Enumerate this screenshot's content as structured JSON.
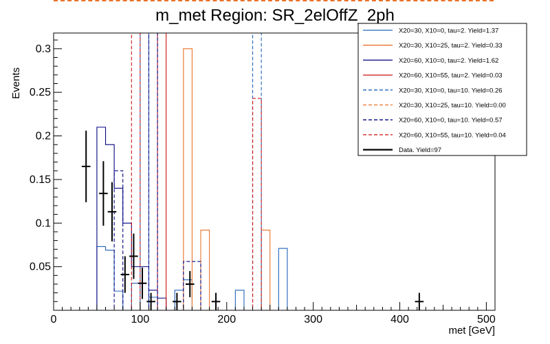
{
  "chart_data": {
    "type": "histogram",
    "title": "m_met Region: SR_2elOffZ_2ph",
    "xlabel": "met [GeV]",
    "ylabel": "Events",
    "xlim": [
      0,
      510
    ],
    "ylim": [
      0,
      0.318
    ],
    "bin_width": 10,
    "xticks": [
      0,
      100,
      200,
      300,
      400,
      500
    ],
    "yticks": [
      0.05,
      0.1,
      0.15,
      0.2,
      0.25,
      0.3
    ],
    "ytick_labels": [
      "0.05",
      "0.1",
      "0.15",
      "0.2",
      "0.25",
      "0.3"
    ],
    "series": [
      {
        "name": "X20=30, X10=0, tau=2. Yield=1.37",
        "color": "#1f63b8",
        "dash": false,
        "bins": [
          [
            40,
            0
          ],
          [
            50,
            0.073
          ],
          [
            60,
            0.069
          ],
          [
            70,
            0.022
          ],
          [
            80,
            0
          ],
          [
            90,
            0.031
          ],
          [
            100,
            0
          ],
          [
            110,
            0.015
          ],
          [
            120,
            0
          ],
          [
            130,
            0
          ],
          [
            140,
            0.023
          ],
          [
            150,
            0.035
          ],
          [
            160,
            0
          ],
          [
            170,
            0
          ],
          [
            180,
            0
          ],
          [
            190,
            0
          ],
          [
            200,
            0
          ],
          [
            210,
            0.023
          ],
          [
            220,
            0
          ],
          [
            230,
            0
          ],
          [
            240,
            0
          ],
          [
            250,
            0
          ],
          [
            260,
            0.071
          ],
          [
            270,
            0
          ]
        ]
      },
      {
        "name": "X20=30, X10=25, tau=2. Yield=0.33",
        "color": "#e8722a",
        "dash": false,
        "bins": [
          [
            140,
            0
          ],
          [
            150,
            0.3
          ],
          [
            160,
            0
          ],
          [
            170,
            0.092
          ],
          [
            180,
            0
          ],
          [
            240,
            0.092
          ],
          [
            250,
            0
          ]
        ]
      },
      {
        "name": "X20=60, X10=0, tau=2. Yield=1.62",
        "color": "#000080",
        "dash": false,
        "bins": [
          [
            40,
            0
          ],
          [
            50,
            0.21
          ],
          [
            60,
            0.19
          ],
          [
            70,
            0.14
          ],
          [
            80,
            0.1
          ],
          [
            90,
            0.05
          ],
          [
            100,
            0.05
          ],
          [
            110,
            0.023
          ],
          [
            120,
            0.014
          ],
          [
            130,
            0
          ]
        ]
      },
      {
        "name": "X20=60, X10=55, tau=2. Yield=0.03",
        "color": "#cc1111",
        "dash": false,
        "bins": [
          [
            110,
            0
          ],
          [
            120,
            0.5
          ],
          [
            130,
            0
          ]
        ]
      },
      {
        "name": "X20=30, X10=0, tau=10. Yield=0.26",
        "color": "#1f63b8",
        "dash": true,
        "bins": [
          [
            90,
            0
          ],
          [
            100,
            0.5
          ],
          [
            110,
            0
          ],
          [
            220,
            0
          ],
          [
            230,
            0.5
          ],
          [
            240,
            0
          ]
        ]
      },
      {
        "name": "X20=30, X10=25, tau=10. Yield=0.00",
        "color": "#e8722a",
        "dash": true,
        "bins": []
      },
      {
        "name": "X20=60, X10=0, tau=10. Yield=0.57",
        "color": "#000080",
        "dash": true,
        "bins": [
          [
            60,
            0
          ],
          [
            70,
            0.16
          ],
          [
            80,
            0
          ],
          [
            100,
            0
          ],
          [
            110,
            0.5
          ],
          [
            120,
            0
          ],
          [
            140,
            0
          ],
          [
            150,
            0.056
          ],
          [
            160,
            0.056
          ],
          [
            170,
            0
          ]
        ]
      },
      {
        "name": "X20=60, X10=55, tau=10. Yield=0.04",
        "color": "#cc1111",
        "dash": true,
        "bins": [
          [
            80,
            0
          ],
          [
            90,
            0.5
          ],
          [
            100,
            0
          ],
          [
            220,
            0
          ],
          [
            230,
            0.243
          ],
          [
            240,
            0
          ]
        ]
      }
    ],
    "data": {
      "name": "Data. Yield=97",
      "color": "#000000",
      "points": [
        {
          "x": 37.5,
          "y": 0.165,
          "err": 0.041
        },
        {
          "x": 57.5,
          "y": 0.134,
          "err": 0.037
        },
        {
          "x": 67.5,
          "y": 0.113,
          "err": 0.034
        },
        {
          "x": 82.5,
          "y": 0.041,
          "err": 0.021
        },
        {
          "x": 92.5,
          "y": 0.062,
          "err": 0.026
        },
        {
          "x": 102.5,
          "y": 0.031,
          "err": 0.018
        },
        {
          "x": 112.5,
          "y": 0.01,
          "err": 0.01
        },
        {
          "x": 142.5,
          "y": 0.01,
          "err": 0.01
        },
        {
          "x": 157.5,
          "y": 0.03,
          "err": 0.015
        },
        {
          "x": 187.5,
          "y": 0.01,
          "err": 0.01
        },
        {
          "x": 422.5,
          "y": 0.01,
          "err": 0.01
        }
      ]
    },
    "legend_position": "top-right"
  }
}
